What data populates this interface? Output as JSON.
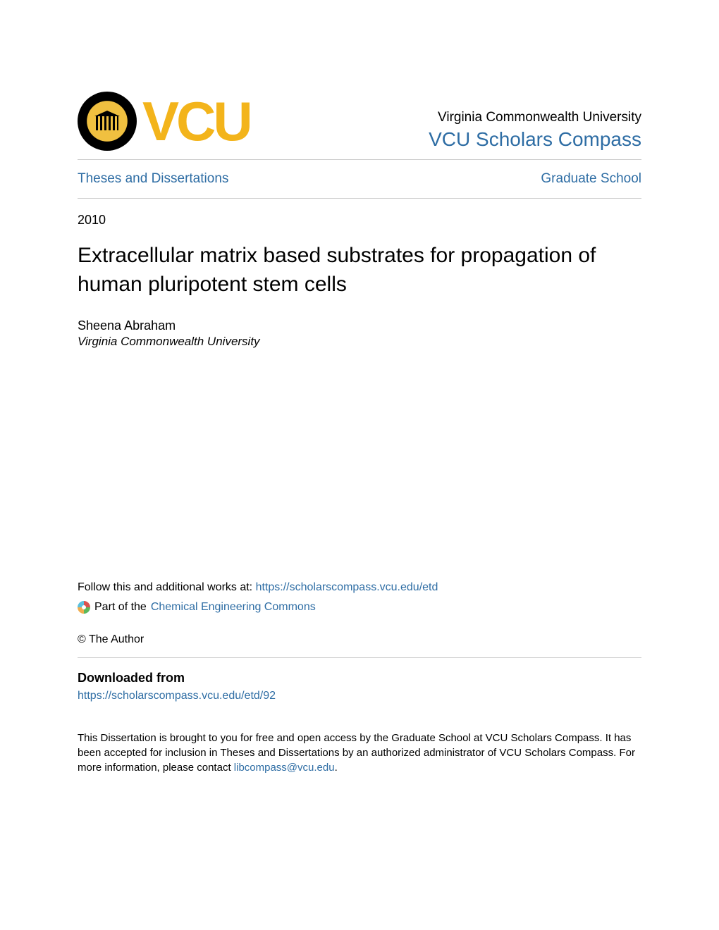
{
  "header": {
    "logo_text": "VCU",
    "institution_name": "Virginia Commonwealth University",
    "compass_name": "VCU Scholars Compass"
  },
  "nav": {
    "left": "Theses and Dissertations",
    "right": "Graduate School"
  },
  "document": {
    "year": "2010",
    "title": "Extracellular matrix based substrates for propagation of human pluripotent stem cells",
    "author_name": "Sheena Abraham",
    "author_affiliation": "Virginia Commonwealth University"
  },
  "follow": {
    "prefix": "Follow this and additional works at: ",
    "url": "https://scholarscompass.vcu.edu/etd"
  },
  "part_of": {
    "prefix": "Part of the ",
    "link": "Chemical Engineering Commons"
  },
  "copyright": "© The Author",
  "downloaded": {
    "heading": "Downloaded from",
    "url": "https://scholarscompass.vcu.edu/etd/92"
  },
  "footer": {
    "text_before": "This Dissertation is brought to you for free and open access by the Graduate School at VCU Scholars Compass. It has been accepted for inclusion in Theses and Dissertations by an authorized administrator of VCU Scholars Compass. For more information, please contact ",
    "email": "libcompass@vcu.edu",
    "text_after": "."
  },
  "colors": {
    "link": "#2e6da4",
    "gold": "#f3b41b",
    "divider": "#cccccc",
    "text": "#000000",
    "background": "#ffffff"
  }
}
